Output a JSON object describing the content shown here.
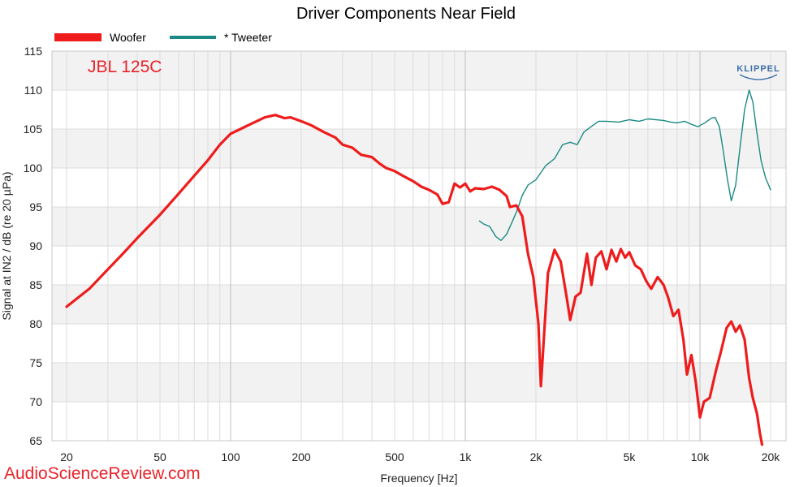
{
  "chart_data": {
    "type": "line",
    "title": "Driver Components Near Field",
    "xlabel": "Frequency [Hz]",
    "ylabel": "Signal at IN2 / dB (re 20 µPa)",
    "xscale": "log",
    "xlim": [
      20,
      20000
    ],
    "ylim": [
      65,
      115
    ],
    "grid": true,
    "legend_position": "top-left",
    "x_ticks": [
      {
        "value": 20,
        "label": "20"
      },
      {
        "value": 50,
        "label": "50"
      },
      {
        "value": 100,
        "label": "100"
      },
      {
        "value": 200,
        "label": "200"
      },
      {
        "value": 500,
        "label": "500"
      },
      {
        "value": 1000,
        "label": "1k"
      },
      {
        "value": 2000,
        "label": "2k"
      },
      {
        "value": 5000,
        "label": "5k"
      },
      {
        "value": 10000,
        "label": "10k"
      },
      {
        "value": 20000,
        "label": "20k"
      }
    ],
    "y_ticks": [
      {
        "value": 115,
        "label": "115"
      },
      {
        "value": 110,
        "label": "110"
      },
      {
        "value": 105,
        "label": "105"
      },
      {
        "value": 100,
        "label": "100"
      },
      {
        "value": 95,
        "label": "95"
      },
      {
        "value": 90,
        "label": "90"
      },
      {
        "value": 85,
        "label": "85"
      },
      {
        "value": 80,
        "label": "80"
      },
      {
        "value": 75,
        "label": "75"
      },
      {
        "value": 70,
        "label": "70"
      },
      {
        "value": 65,
        "label": "65"
      }
    ],
    "series": [
      {
        "name": "Woofer",
        "color": "#ee1c1c",
        "points": [
          [
            20,
            82.2
          ],
          [
            25,
            84.5
          ],
          [
            30,
            87.0
          ],
          [
            35,
            89.1
          ],
          [
            40,
            91.0
          ],
          [
            50,
            94.0
          ],
          [
            60,
            96.7
          ],
          [
            70,
            99.0
          ],
          [
            80,
            101.0
          ],
          [
            90,
            103.0
          ],
          [
            100,
            104.4
          ],
          [
            110,
            105.0
          ],
          [
            125,
            105.8
          ],
          [
            140,
            106.5
          ],
          [
            155,
            106.8
          ],
          [
            170,
            106.4
          ],
          [
            180,
            106.5
          ],
          [
            200,
            106.0
          ],
          [
            220,
            105.5
          ],
          [
            250,
            104.6
          ],
          [
            280,
            103.9
          ],
          [
            300,
            103.0
          ],
          [
            330,
            102.6
          ],
          [
            360,
            101.7
          ],
          [
            400,
            101.4
          ],
          [
            430,
            100.6
          ],
          [
            460,
            100.0
          ],
          [
            500,
            99.6
          ],
          [
            550,
            98.9
          ],
          [
            600,
            98.3
          ],
          [
            650,
            97.6
          ],
          [
            700,
            97.2
          ],
          [
            760,
            96.6
          ],
          [
            800,
            95.4
          ],
          [
            850,
            95.6
          ],
          [
            900,
            98.0
          ],
          [
            950,
            97.5
          ],
          [
            1000,
            98.0
          ],
          [
            1050,
            97.0
          ],
          [
            1100,
            97.4
          ],
          [
            1200,
            97.3
          ],
          [
            1300,
            97.6
          ],
          [
            1400,
            97.2
          ],
          [
            1500,
            96.4
          ],
          [
            1550,
            95.0
          ],
          [
            1650,
            95.2
          ],
          [
            1750,
            93.8
          ],
          [
            1850,
            89.0
          ],
          [
            1950,
            86.0
          ],
          [
            2050,
            80.0
          ],
          [
            2100,
            72.0
          ],
          [
            2150,
            77.0
          ],
          [
            2250,
            86.5
          ],
          [
            2400,
            89.5
          ],
          [
            2550,
            88.0
          ],
          [
            2700,
            83.5
          ],
          [
            2800,
            80.5
          ],
          [
            2950,
            83.5
          ],
          [
            3100,
            84.0
          ],
          [
            3300,
            89.0
          ],
          [
            3450,
            85.0
          ],
          [
            3600,
            88.5
          ],
          [
            3800,
            89.3
          ],
          [
            4000,
            87.0
          ],
          [
            4200,
            89.5
          ],
          [
            4400,
            88.0
          ],
          [
            4600,
            89.6
          ],
          [
            4800,
            88.5
          ],
          [
            5000,
            89.2
          ],
          [
            5300,
            87.5
          ],
          [
            5600,
            87.0
          ],
          [
            5900,
            85.5
          ],
          [
            6200,
            84.5
          ],
          [
            6600,
            86.0
          ],
          [
            7000,
            85.0
          ],
          [
            7300,
            83.5
          ],
          [
            7700,
            81.0
          ],
          [
            8100,
            81.8
          ],
          [
            8500,
            78.0
          ],
          [
            8800,
            73.5
          ],
          [
            9200,
            76.0
          ],
          [
            9600,
            72.5
          ],
          [
            10000,
            68.0
          ],
          [
            10400,
            70.0
          ],
          [
            11000,
            70.5
          ],
          [
            11700,
            74.0
          ],
          [
            12300,
            76.5
          ],
          [
            13000,
            79.5
          ],
          [
            13600,
            80.3
          ],
          [
            14200,
            79.0
          ],
          [
            14800,
            79.8
          ],
          [
            15500,
            78.0
          ],
          [
            16200,
            73.0
          ],
          [
            16800,
            70.5
          ],
          [
            17500,
            68.5
          ],
          [
            18000,
            66.0
          ],
          [
            18400,
            64.5
          ]
        ]
      },
      {
        "name": "* Tweeter",
        "color": "#1b8a84",
        "points": [
          [
            1150,
            93.2
          ],
          [
            1200,
            92.8
          ],
          [
            1270,
            92.5
          ],
          [
            1350,
            91.2
          ],
          [
            1420,
            90.7
          ],
          [
            1500,
            91.5
          ],
          [
            1580,
            93.0
          ],
          [
            1660,
            94.5
          ],
          [
            1750,
            96.5
          ],
          [
            1850,
            97.8
          ],
          [
            2000,
            98.5
          ],
          [
            2200,
            100.3
          ],
          [
            2400,
            101.2
          ],
          [
            2600,
            103.0
          ],
          [
            2800,
            103.3
          ],
          [
            3000,
            103.0
          ],
          [
            3200,
            104.6
          ],
          [
            3400,
            105.2
          ],
          [
            3700,
            106.0
          ],
          [
            4000,
            106.0
          ],
          [
            4500,
            105.9
          ],
          [
            5000,
            106.2
          ],
          [
            5500,
            106.0
          ],
          [
            6000,
            106.3
          ],
          [
            7000,
            106.1
          ],
          [
            7500,
            105.9
          ],
          [
            8000,
            105.8
          ],
          [
            8600,
            106.0
          ],
          [
            9200,
            105.6
          ],
          [
            9800,
            105.3
          ],
          [
            10500,
            105.8
          ],
          [
            11200,
            106.4
          ],
          [
            11600,
            106.5
          ],
          [
            12100,
            105.3
          ],
          [
            12600,
            102.0
          ],
          [
            13100,
            98.5
          ],
          [
            13600,
            95.8
          ],
          [
            14200,
            97.8
          ],
          [
            14800,
            102.5
          ],
          [
            15500,
            107.5
          ],
          [
            16200,
            110.0
          ],
          [
            16800,
            108.5
          ],
          [
            17500,
            104.5
          ],
          [
            18200,
            101.0
          ],
          [
            19000,
            98.8
          ],
          [
            20000,
            97.2
          ]
        ]
      }
    ],
    "annotations": [
      "JBL 125C"
    ]
  },
  "branding": {
    "logo_text": "KLIPPEL",
    "watermark": "AudioScienceReview.com"
  }
}
